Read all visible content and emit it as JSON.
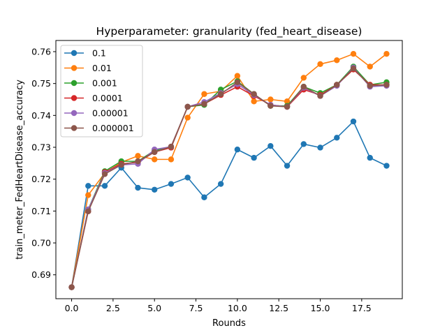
{
  "chart_data": {
    "type": "line",
    "title": "Hyperparameter: granularity (fed_heart_disease)",
    "xlabel": "Rounds",
    "ylabel": "train_meter_FedHeartDisease_accuracy",
    "xlim": [
      -0.95,
      19.95
    ],
    "ylim": [
      0.6825,
      0.7635
    ],
    "xticks": [
      0.0,
      2.5,
      5.0,
      7.5,
      10.0,
      12.5,
      15.0,
      17.5
    ],
    "xtick_labels": [
      "0.0",
      "2.5",
      "5.0",
      "7.5",
      "10.0",
      "12.5",
      "15.0",
      "17.5"
    ],
    "yticks": [
      0.69,
      0.7,
      0.71,
      0.72,
      0.73,
      0.74,
      0.75,
      0.76
    ],
    "ytick_labels": [
      "0.69",
      "0.70",
      "0.71",
      "0.72",
      "0.73",
      "0.74",
      "0.75",
      "0.76"
    ],
    "grid": false,
    "legend_position": "top-left",
    "x": [
      0,
      1,
      2,
      3,
      4,
      5,
      6,
      7,
      8,
      9,
      10,
      11,
      12,
      13,
      14,
      15,
      16,
      17,
      18,
      19
    ],
    "series": [
      {
        "name": "0.1",
        "color": "#1f77b4",
        "values": [
          0.6861,
          0.7179,
          0.7179,
          0.7236,
          0.7173,
          0.7167,
          0.7185,
          0.7205,
          0.7143,
          0.7185,
          0.7293,
          0.7267,
          0.7304,
          0.7242,
          0.731,
          0.7299,
          0.733,
          0.7381,
          0.7267,
          0.7242
        ]
      },
      {
        "name": "0.01",
        "color": "#ff7f0e",
        "values": [
          0.6861,
          0.715,
          0.7219,
          0.7253,
          0.7273,
          0.7262,
          0.7262,
          0.7393,
          0.7467,
          0.7476,
          0.7524,
          0.7444,
          0.745,
          0.7444,
          0.7518,
          0.7561,
          0.7573,
          0.7593,
          0.7553,
          0.7593
        ]
      },
      {
        "name": "0.001",
        "color": "#2ca02c",
        "values": [
          0.6861,
          0.7105,
          0.7225,
          0.7256,
          0.7256,
          0.729,
          0.7299,
          0.7427,
          0.7433,
          0.7481,
          0.7507,
          0.7467,
          0.743,
          0.743,
          0.749,
          0.747,
          0.7496,
          0.7553,
          0.7496,
          0.7504
        ]
      },
      {
        "name": "0.0001",
        "color": "#d62728",
        "values": [
          0.6861,
          0.7099,
          0.7222,
          0.7248,
          0.7253,
          0.7285,
          0.7299,
          0.7427,
          0.7436,
          0.7464,
          0.749,
          0.7461,
          0.7433,
          0.7427,
          0.7481,
          0.7464,
          0.7496,
          0.7544,
          0.7496,
          0.7496
        ]
      },
      {
        "name": "0.00001",
        "color": "#9467bd",
        "values": [
          0.6861,
          0.7105,
          0.7219,
          0.7245,
          0.7248,
          0.7293,
          0.7302,
          0.7427,
          0.7442,
          0.747,
          0.7498,
          0.7464,
          0.7433,
          0.7427,
          0.7487,
          0.7461,
          0.7493,
          0.755,
          0.749,
          0.7493
        ]
      },
      {
        "name": "0.000001",
        "color": "#8c564b",
        "values": [
          0.6861,
          0.7099,
          0.7216,
          0.7245,
          0.7256,
          0.7285,
          0.7302,
          0.7427,
          0.7436,
          0.7467,
          0.7504,
          0.7467,
          0.743,
          0.7427,
          0.749,
          0.7461,
          0.7496,
          0.7547,
          0.7493,
          0.7496
        ]
      }
    ]
  }
}
